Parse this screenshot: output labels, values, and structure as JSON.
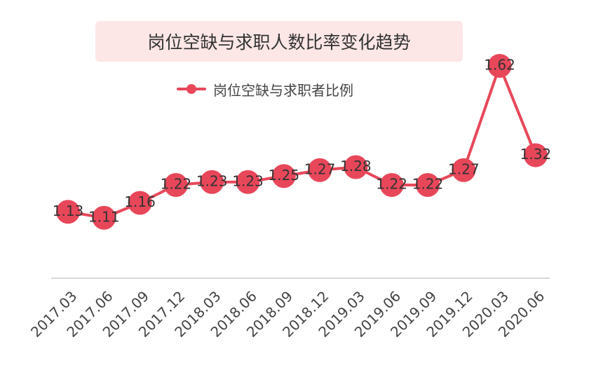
{
  "chart_data": {
    "type": "line",
    "title": "岗位空缺与求职人数比率变化趋势",
    "categories": [
      "2017.03",
      "2017.06",
      "2017.09",
      "2017.12",
      "2018.03",
      "2018.06",
      "2018.09",
      "2018.12",
      "2019.03",
      "2019.06",
      "2019.09",
      "2019.12",
      "2020.03",
      "2020.06"
    ],
    "series": [
      {
        "name": "岗位空缺与求职者比例",
        "values": [
          1.13,
          1.11,
          1.16,
          1.22,
          1.23,
          1.23,
          1.25,
          1.27,
          1.28,
          1.22,
          1.22,
          1.27,
          1.62,
          1.32
        ],
        "labels": [
          "1.13",
          "1.11",
          "1.16",
          "1.22",
          "1.23",
          "1.23",
          "1.25",
          "1.27",
          "1.28",
          "1.22",
          "1.22",
          "1.27",
          "1.62",
          "1.32"
        ],
        "color": "#e8475a"
      }
    ],
    "legend_position": "top-center",
    "grid": false,
    "ylim": [
      0.9,
      1.7
    ]
  }
}
